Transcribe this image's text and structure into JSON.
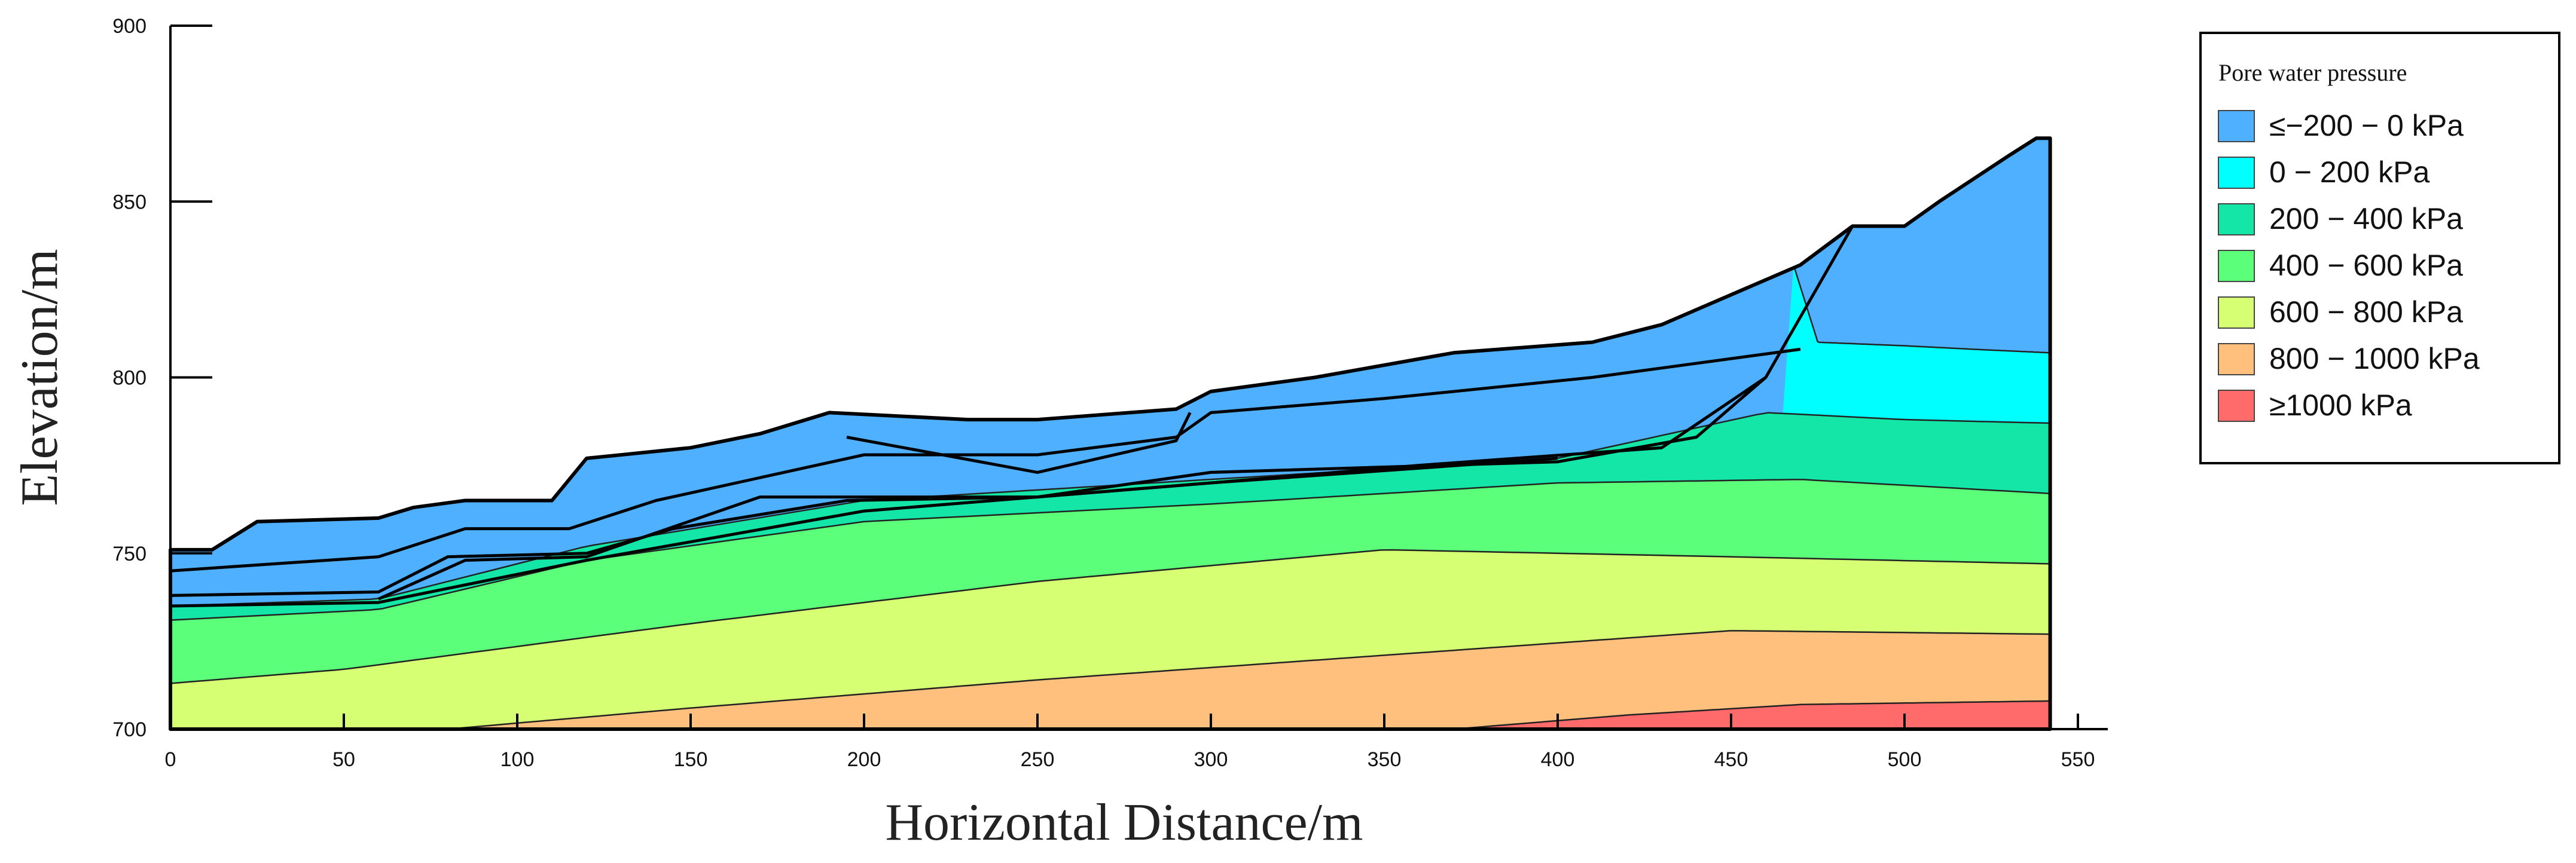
{
  "chart_data": {
    "type": "area",
    "xlabel": "Horizontal Distance/m",
    "ylabel": "Elevation/m",
    "xlim": [
      0,
      550
    ],
    "ylim": [
      700,
      900
    ],
    "x_ticks": [
      0,
      50,
      100,
      150,
      200,
      250,
      300,
      350,
      400,
      450,
      500,
      550
    ],
    "y_ticks": [
      700,
      750,
      800,
      850,
      900
    ],
    "grid": false,
    "legend_position": "right",
    "legend": {
      "title": "Pore water pressure",
      "entries": [
        {
          "label": "≤−200 − 0 kPa",
          "color": "#4fb0ff"
        },
        {
          "label": "0 − 200 kPa",
          "color": "#00ffff"
        },
        {
          "label": "200 − 400 kPa",
          "color": "#13e6a6"
        },
        {
          "label": "400 − 600 kPa",
          "color": "#5bff7a"
        },
        {
          "label": "600 − 800 kPa",
          "color": "#d6ff73"
        },
        {
          "label": "800 − 1000  kPa",
          "color": "#ffbf7d"
        },
        {
          "label": "≥1000  kPa",
          "color": "#ff6b6b"
        }
      ]
    },
    "ground_surface": {
      "x": [
        0,
        12,
        25,
        60,
        70,
        85,
        110,
        120,
        150,
        170,
        190,
        230,
        250,
        290,
        300,
        330,
        370,
        410,
        430,
        470,
        485,
        500,
        510,
        530,
        538,
        542
      ],
      "y": [
        751,
        751,
        759,
        760,
        763,
        765,
        765,
        777,
        780,
        784,
        790,
        788,
        788,
        791,
        796,
        800,
        807,
        810,
        815,
        832,
        843,
        843,
        850,
        863,
        868,
        868
      ]
    },
    "contours": [
      {
        "name": "0 kPa",
        "x": [
          468,
          475,
          500,
          520,
          542
        ],
        "y": [
          832,
          810,
          809,
          808,
          807
        ]
      },
      {
        "name": "200 kPa",
        "x": [
          0,
          60,
          120,
          200,
          300,
          400,
          460,
          500,
          542
        ],
        "y": [
          735,
          737,
          752,
          765,
          771,
          777,
          790,
          788,
          787
        ]
      },
      {
        "name": "400 kPa",
        "x": [
          0,
          60,
          120,
          200,
          300,
          400,
          470,
          542
        ],
        "y": [
          731,
          734,
          748,
          759,
          764,
          770,
          771,
          767
        ]
      },
      {
        "name": "600 kPa",
        "x": [
          0,
          50,
          150,
          250,
          350,
          450,
          542
        ],
        "y": [
          713,
          717,
          730,
          742,
          751,
          749,
          747
        ]
      },
      {
        "name": "800 kPa",
        "x": [
          80,
          150,
          250,
          350,
          450,
          542
        ],
        "y": [
          700,
          706,
          714,
          721,
          728,
          727
        ]
      },
      {
        "name": "1000 kPa",
        "x": [
          370,
          420,
          470,
          542
        ],
        "y": [
          700,
          704,
          707,
          708
        ]
      }
    ]
  }
}
